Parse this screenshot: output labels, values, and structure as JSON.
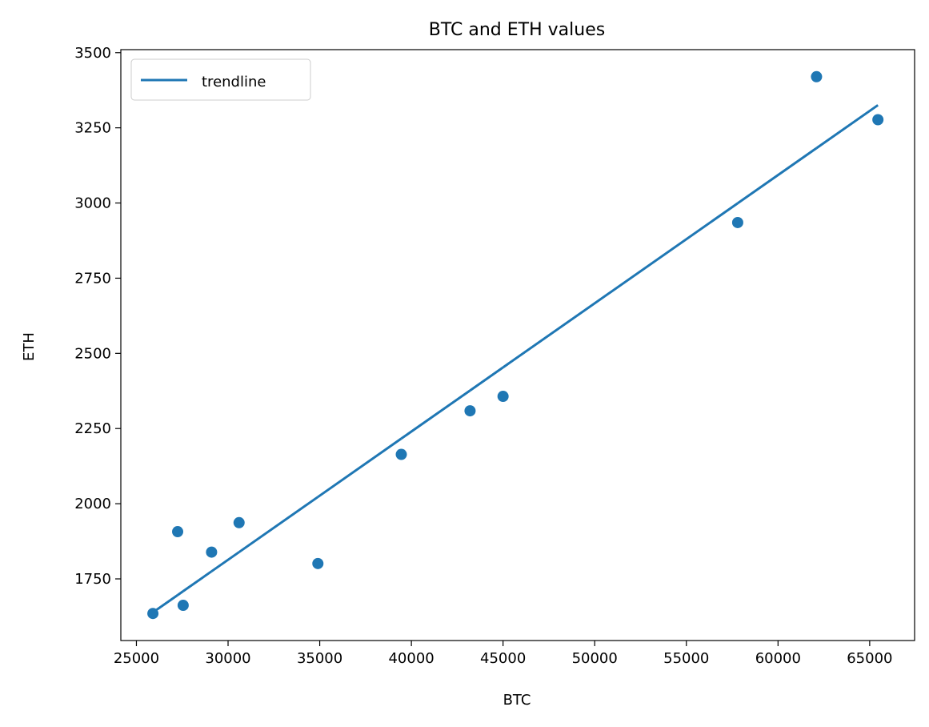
{
  "chart_data": {
    "type": "scatter",
    "title": "BTC and ETH values",
    "xlabel": "BTC",
    "ylabel": "ETH",
    "xlim": [
      24150,
      67450
    ],
    "ylim": [
      1545,
      3510
    ],
    "xticks": [
      25000,
      30000,
      35000,
      40000,
      45000,
      50000,
      55000,
      60000,
      65000
    ],
    "yticks": [
      1750,
      2000,
      2250,
      2500,
      2750,
      3000,
      3250,
      3500
    ],
    "grid": false,
    "legend": {
      "position": "top-left",
      "entries": [
        "trendline"
      ]
    },
    "points": [
      {
        "x": 25900,
        "y": 1635
      },
      {
        "x": 27250,
        "y": 1907
      },
      {
        "x": 27550,
        "y": 1662
      },
      {
        "x": 29100,
        "y": 1839
      },
      {
        "x": 30600,
        "y": 1937
      },
      {
        "x": 34900,
        "y": 1801
      },
      {
        "x": 39450,
        "y": 2164
      },
      {
        "x": 43200,
        "y": 2309
      },
      {
        "x": 45000,
        "y": 2357
      },
      {
        "x": 57800,
        "y": 2935
      },
      {
        "x": 62100,
        "y": 3420
      },
      {
        "x": 65450,
        "y": 3277
      }
    ],
    "trendline": {
      "name": "trendline",
      "x": [
        25900,
        27250,
        27550,
        29100,
        30600,
        34900,
        39450,
        43200,
        45000,
        57800,
        62100,
        65450
      ],
      "slope": 0.04265,
      "intercept": 534
    },
    "colors": {
      "series": "#1f77b4",
      "axes": "#000000",
      "background": "#ffffff"
    }
  }
}
